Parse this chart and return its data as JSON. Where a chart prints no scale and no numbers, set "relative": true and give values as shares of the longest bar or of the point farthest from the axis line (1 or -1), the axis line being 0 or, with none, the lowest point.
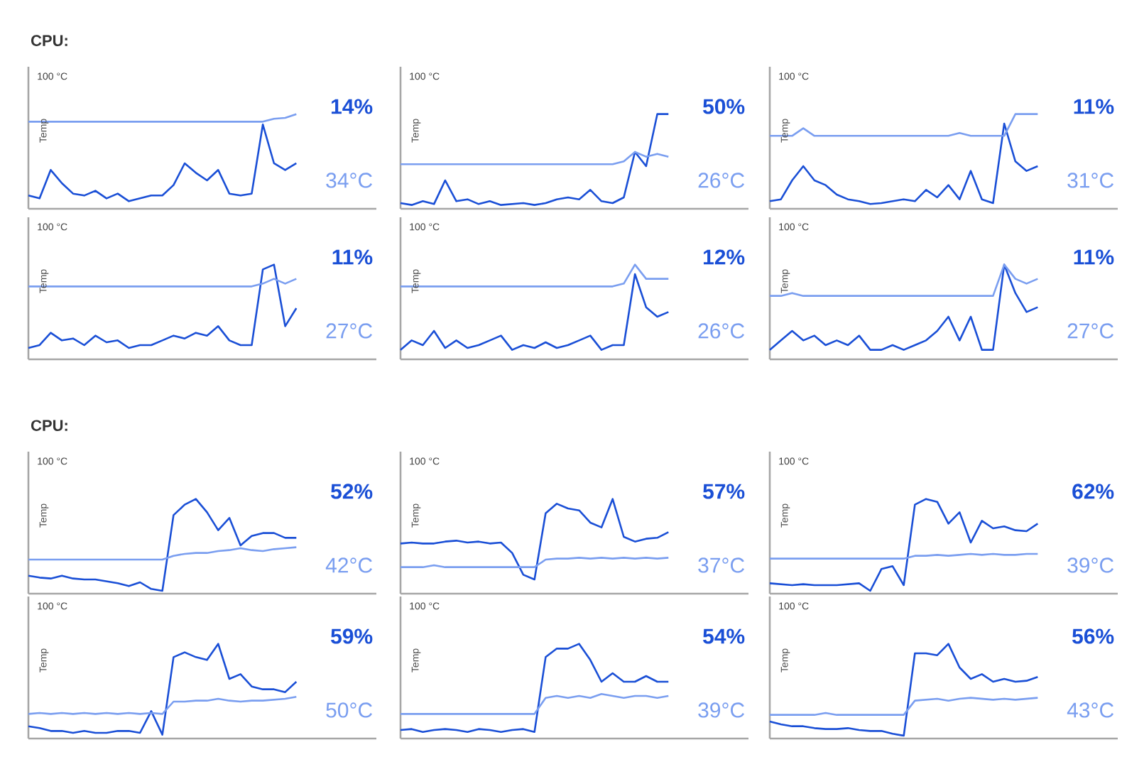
{
  "chart_data": [
    {
      "type": "line",
      "relative": true,
      "title": "CPU:",
      "ylabel": "Temp",
      "annotations": [
        "100 °C",
        "14%",
        "34°C"
      ],
      "categories": [
        null,
        null,
        null,
        null,
        null,
        null,
        null,
        null,
        null,
        null,
        null,
        null,
        null,
        null,
        null,
        null,
        null,
        null,
        null,
        null,
        null,
        null,
        null,
        null,
        null
      ],
      "series": [
        {
          "color": "#1a4fd6",
          "values": [
            0.14,
            0.11,
            0.41,
            0.27,
            0.16,
            0.14,
            0.19,
            0.11,
            0.16,
            0.08,
            0.11,
            0.14,
            0.14,
            0.25,
            0.48,
            0.38,
            0.3,
            0.41,
            0.16,
            0.14,
            0.16,
            0.89,
            0.48,
            0.41,
            0.48
          ]
        },
        {
          "color": "#7a9ef0",
          "values": [
            0.92,
            0.92,
            0.92,
            0.92,
            0.92,
            0.92,
            0.92,
            0.92,
            0.92,
            0.92,
            0.92,
            0.92,
            0.92,
            0.92,
            0.92,
            0.92,
            0.92,
            0.92,
            0.92,
            0.92,
            0.92,
            0.92,
            0.95,
            0.96,
            1
          ]
        }
      ]
    },
    {
      "type": "line",
      "relative": true,
      "ylabel": "Temp",
      "annotations": [
        "100 °C",
        "50%",
        "26°C"
      ],
      "categories": [
        null,
        null,
        null,
        null,
        null,
        null,
        null,
        null,
        null,
        null,
        null,
        null,
        null,
        null,
        null,
        null,
        null,
        null,
        null,
        null,
        null,
        null,
        null,
        null,
        null
      ],
      "series": [
        {
          "color": "#1a4fd6",
          "values": [
            0.06,
            0.04,
            0.08,
            0.05,
            0.3,
            0.08,
            0.1,
            0.05,
            0.08,
            0.04,
            0.05,
            0.06,
            0.04,
            0.06,
            0.1,
            0.12,
            0.1,
            0.2,
            0.08,
            0.06,
            0.12,
            0.6,
            0.45,
            1,
            1
          ]
        },
        {
          "color": "#7a9ef0",
          "values": [
            0.47,
            0.47,
            0.47,
            0.47,
            0.47,
            0.47,
            0.47,
            0.47,
            0.47,
            0.47,
            0.47,
            0.47,
            0.47,
            0.47,
            0.47,
            0.47,
            0.47,
            0.47,
            0.47,
            0.47,
            0.5,
            0.6,
            0.55,
            0.58,
            0.55
          ]
        }
      ]
    },
    {
      "type": "line",
      "relative": true,
      "ylabel": "Temp",
      "annotations": [
        "100 °C",
        "11%",
        "31°C"
      ],
      "categories": [
        null,
        null,
        null,
        null,
        null,
        null,
        null,
        null,
        null,
        null,
        null,
        null,
        null,
        null,
        null,
        null,
        null,
        null,
        null,
        null,
        null,
        null,
        null,
        null,
        null
      ],
      "series": [
        {
          "color": "#1a4fd6",
          "values": [
            0.08,
            0.1,
            0.3,
            0.45,
            0.3,
            0.25,
            0.15,
            0.1,
            0.08,
            0.05,
            0.06,
            0.08,
            0.1,
            0.08,
            0.2,
            0.12,
            0.25,
            0.1,
            0.4,
            0.1,
            0.06,
            0.9,
            0.5,
            0.4,
            0.45
          ]
        },
        {
          "color": "#7a9ef0",
          "values": [
            0.77,
            0.77,
            0.77,
            0.85,
            0.77,
            0.77,
            0.77,
            0.77,
            0.77,
            0.77,
            0.77,
            0.77,
            0.77,
            0.77,
            0.77,
            0.77,
            0.77,
            0.8,
            0.77,
            0.77,
            0.77,
            0.77,
            1,
            1,
            1
          ]
        }
      ]
    },
    {
      "type": "line",
      "relative": true,
      "ylabel": "Temp",
      "annotations": [
        "100 °C",
        "11%",
        "27°C"
      ],
      "categories": [
        null,
        null,
        null,
        null,
        null,
        null,
        null,
        null,
        null,
        null,
        null,
        null,
        null,
        null,
        null,
        null,
        null,
        null,
        null,
        null,
        null,
        null,
        null,
        null,
        null
      ],
      "series": [
        {
          "color": "#1a4fd6",
          "values": [
            0.12,
            0.15,
            0.28,
            0.2,
            0.22,
            0.15,
            0.25,
            0.18,
            0.2,
            0.12,
            0.15,
            0.15,
            0.2,
            0.25,
            0.22,
            0.28,
            0.25,
            0.35,
            0.2,
            0.15,
            0.15,
            0.95,
            1,
            0.35,
            0.54
          ]
        },
        {
          "color": "#7a9ef0",
          "values": [
            0.77,
            0.77,
            0.77,
            0.77,
            0.77,
            0.77,
            0.77,
            0.77,
            0.77,
            0.77,
            0.77,
            0.77,
            0.77,
            0.77,
            0.77,
            0.77,
            0.77,
            0.77,
            0.77,
            0.77,
            0.77,
            0.8,
            0.85,
            0.8,
            0.85
          ]
        }
      ]
    },
    {
      "type": "line",
      "relative": true,
      "ylabel": "Temp",
      "annotations": [
        "100 °C",
        "12%",
        "26°C"
      ],
      "categories": [
        null,
        null,
        null,
        null,
        null,
        null,
        null,
        null,
        null,
        null,
        null,
        null,
        null,
        null,
        null,
        null,
        null,
        null,
        null,
        null,
        null,
        null,
        null,
        null,
        null
      ],
      "series": [
        {
          "color": "#1a4fd6",
          "values": [
            0.1,
            0.2,
            0.15,
            0.3,
            0.12,
            0.2,
            0.12,
            0.15,
            0.2,
            0.25,
            0.1,
            0.15,
            0.12,
            0.18,
            0.12,
            0.15,
            0.2,
            0.25,
            0.1,
            0.15,
            0.15,
            0.9,
            0.55,
            0.45,
            0.5
          ]
        },
        {
          "color": "#7a9ef0",
          "values": [
            0.77,
            0.77,
            0.77,
            0.77,
            0.77,
            0.77,
            0.77,
            0.77,
            0.77,
            0.77,
            0.77,
            0.77,
            0.77,
            0.77,
            0.77,
            0.77,
            0.77,
            0.77,
            0.77,
            0.77,
            0.8,
            1,
            0.85,
            0.85,
            0.85
          ]
        }
      ]
    },
    {
      "type": "line",
      "relative": true,
      "ylabel": "Temp",
      "annotations": [
        "100 °C",
        "11%",
        "27°C"
      ],
      "categories": [
        null,
        null,
        null,
        null,
        null,
        null,
        null,
        null,
        null,
        null,
        null,
        null,
        null,
        null,
        null,
        null,
        null,
        null,
        null,
        null,
        null,
        null,
        null,
        null,
        null
      ],
      "series": [
        {
          "color": "#1a4fd6",
          "values": [
            0.1,
            0.2,
            0.3,
            0.2,
            0.25,
            0.15,
            0.2,
            0.15,
            0.25,
            0.1,
            0.1,
            0.15,
            0.1,
            0.15,
            0.2,
            0.3,
            0.45,
            0.2,
            0.45,
            0.1,
            0.1,
            1,
            0.7,
            0.5,
            0.55
          ]
        },
        {
          "color": "#7a9ef0",
          "values": [
            0.67,
            0.67,
            0.7,
            0.67,
            0.67,
            0.67,
            0.67,
            0.67,
            0.67,
            0.67,
            0.67,
            0.67,
            0.67,
            0.67,
            0.67,
            0.67,
            0.67,
            0.67,
            0.67,
            0.67,
            0.67,
            1,
            0.85,
            0.8,
            0.85
          ]
        }
      ]
    },
    {
      "type": "line",
      "relative": true,
      "title": "CPU:",
      "ylabel": "Temp",
      "annotations": [
        "100 °C",
        "52%",
        "42°C"
      ],
      "categories": [
        null,
        null,
        null,
        null,
        null,
        null,
        null,
        null,
        null,
        null,
        null,
        null,
        null,
        null,
        null,
        null,
        null,
        null,
        null,
        null,
        null,
        null,
        null,
        null,
        null
      ],
      "series": [
        {
          "color": "#1a4fd6",
          "values": [
            0.19,
            0.17,
            0.16,
            0.19,
            0.16,
            0.15,
            0.15,
            0.13,
            0.11,
            0.08,
            0.12,
            0.05,
            0.03,
            0.83,
            0.94,
            1,
            0.86,
            0.67,
            0.8,
            0.51,
            0.61,
            0.64,
            0.64,
            0.59,
            0.59
          ]
        },
        {
          "color": "#7a9ef0",
          "values": [
            0.36,
            0.36,
            0.36,
            0.36,
            0.36,
            0.36,
            0.36,
            0.36,
            0.36,
            0.36,
            0.36,
            0.36,
            0.36,
            0.4,
            0.42,
            0.43,
            0.43,
            0.45,
            0.46,
            0.48,
            0.46,
            0.45,
            0.47,
            0.48,
            0.49
          ]
        }
      ]
    },
    {
      "type": "line",
      "relative": true,
      "ylabel": "Temp",
      "annotations": [
        "100 °C",
        "57%",
        "37°C"
      ],
      "categories": [
        null,
        null,
        null,
        null,
        null,
        null,
        null,
        null,
        null,
        null,
        null,
        null,
        null,
        null,
        null,
        null,
        null,
        null,
        null,
        null,
        null,
        null,
        null,
        null,
        null
      ],
      "series": [
        {
          "color": "#1a4fd6",
          "values": [
            0.53,
            0.54,
            0.53,
            0.53,
            0.55,
            0.56,
            0.54,
            0.55,
            0.53,
            0.54,
            0.43,
            0.2,
            0.15,
            0.85,
            0.95,
            0.9,
            0.88,
            0.75,
            0.7,
            1,
            0.6,
            0.55,
            0.58,
            0.59,
            0.65
          ]
        },
        {
          "color": "#7a9ef0",
          "values": [
            0.28,
            0.28,
            0.28,
            0.3,
            0.28,
            0.28,
            0.28,
            0.28,
            0.28,
            0.28,
            0.28,
            0.28,
            0.28,
            0.36,
            0.37,
            0.37,
            0.38,
            0.37,
            0.38,
            0.37,
            0.38,
            0.37,
            0.38,
            0.37,
            0.38
          ]
        }
      ]
    },
    {
      "type": "line",
      "relative": true,
      "ylabel": "Temp",
      "annotations": [
        "100 °C",
        "62%",
        "39°C"
      ],
      "categories": [
        null,
        null,
        null,
        null,
        null,
        null,
        null,
        null,
        null,
        null,
        null,
        null,
        null,
        null,
        null,
        null,
        null,
        null,
        null,
        null,
        null,
        null,
        null,
        null,
        null
      ],
      "series": [
        {
          "color": "#1a4fd6",
          "values": [
            0.11,
            0.1,
            0.09,
            0.1,
            0.09,
            0.09,
            0.09,
            0.1,
            0.11,
            0.03,
            0.26,
            0.29,
            0.09,
            0.94,
            1,
            0.97,
            0.74,
            0.86,
            0.54,
            0.77,
            0.69,
            0.71,
            0.67,
            0.66,
            0.74
          ]
        },
        {
          "color": "#7a9ef0",
          "values": [
            0.37,
            0.37,
            0.37,
            0.37,
            0.37,
            0.37,
            0.37,
            0.37,
            0.37,
            0.37,
            0.37,
            0.37,
            0.37,
            0.4,
            0.4,
            0.41,
            0.4,
            0.41,
            0.42,
            0.41,
            0.42,
            0.41,
            0.41,
            0.42,
            0.42
          ]
        }
      ]
    },
    {
      "type": "line",
      "relative": true,
      "ylabel": "Temp",
      "annotations": [
        "100 °C",
        "59%",
        "50°C"
      ],
      "categories": [
        null,
        null,
        null,
        null,
        null,
        null,
        null,
        null,
        null,
        null,
        null,
        null,
        null,
        null,
        null,
        null,
        null,
        null,
        null,
        null,
        null,
        null,
        null,
        null,
        null
      ],
      "series": [
        {
          "color": "#1a4fd6",
          "values": [
            0.13,
            0.11,
            0.08,
            0.08,
            0.06,
            0.08,
            0.06,
            0.06,
            0.08,
            0.08,
            0.06,
            0.29,
            0.04,
            0.86,
            0.91,
            0.86,
            0.83,
            1,
            0.63,
            0.68,
            0.55,
            0.52,
            0.52,
            0.49,
            0.6
          ]
        },
        {
          "color": "#7a9ef0",
          "values": [
            0.26,
            0.27,
            0.26,
            0.27,
            0.26,
            0.27,
            0.26,
            0.27,
            0.26,
            0.27,
            0.26,
            0.27,
            0.26,
            0.39,
            0.39,
            0.4,
            0.4,
            0.42,
            0.4,
            0.39,
            0.4,
            0.4,
            0.41,
            0.42,
            0.44
          ]
        }
      ]
    },
    {
      "type": "line",
      "relative": true,
      "ylabel": "Temp",
      "annotations": [
        "100 °C",
        "54%",
        "39°C"
      ],
      "categories": [
        null,
        null,
        null,
        null,
        null,
        null,
        null,
        null,
        null,
        null,
        null,
        null,
        null,
        null,
        null,
        null,
        null,
        null,
        null,
        null,
        null,
        null,
        null,
        null,
        null
      ],
      "series": [
        {
          "color": "#1a4fd6",
          "values": [
            0.09,
            0.1,
            0.07,
            0.09,
            0.1,
            0.09,
            0.07,
            0.1,
            0.09,
            0.07,
            0.09,
            0.1,
            0.07,
            0.86,
            0.95,
            0.95,
            1,
            0.83,
            0.6,
            0.69,
            0.6,
            0.6,
            0.66,
            0.6,
            0.6
          ]
        },
        {
          "color": "#7a9ef0",
          "values": [
            0.26,
            0.26,
            0.26,
            0.26,
            0.26,
            0.26,
            0.26,
            0.26,
            0.26,
            0.26,
            0.26,
            0.26,
            0.26,
            0.43,
            0.45,
            0.43,
            0.45,
            0.43,
            0.47,
            0.45,
            0.43,
            0.45,
            0.45,
            0.43,
            0.45
          ]
        }
      ]
    },
    {
      "type": "line",
      "relative": true,
      "ylabel": "Temp",
      "annotations": [
        "100 °C",
        "56%",
        "43°C"
      ],
      "categories": [
        null,
        null,
        null,
        null,
        null,
        null,
        null,
        null,
        null,
        null,
        null,
        null,
        null,
        null,
        null,
        null,
        null,
        null,
        null,
        null,
        null,
        null,
        null,
        null,
        null
      ],
      "series": [
        {
          "color": "#1a4fd6",
          "values": [
            0.18,
            0.15,
            0.13,
            0.13,
            0.11,
            0.1,
            0.1,
            0.11,
            0.09,
            0.08,
            0.08,
            0.05,
            0.03,
            0.9,
            0.9,
            0.88,
            1,
            0.75,
            0.63,
            0.68,
            0.6,
            0.63,
            0.6,
            0.61,
            0.65
          ]
        },
        {
          "color": "#7a9ef0",
          "values": [
            0.25,
            0.25,
            0.25,
            0.25,
            0.25,
            0.27,
            0.25,
            0.25,
            0.25,
            0.25,
            0.25,
            0.25,
            0.25,
            0.4,
            0.41,
            0.42,
            0.4,
            0.42,
            0.43,
            0.42,
            0.41,
            0.42,
            0.41,
            0.42,
            0.43
          ]
        }
      ]
    }
  ]
}
